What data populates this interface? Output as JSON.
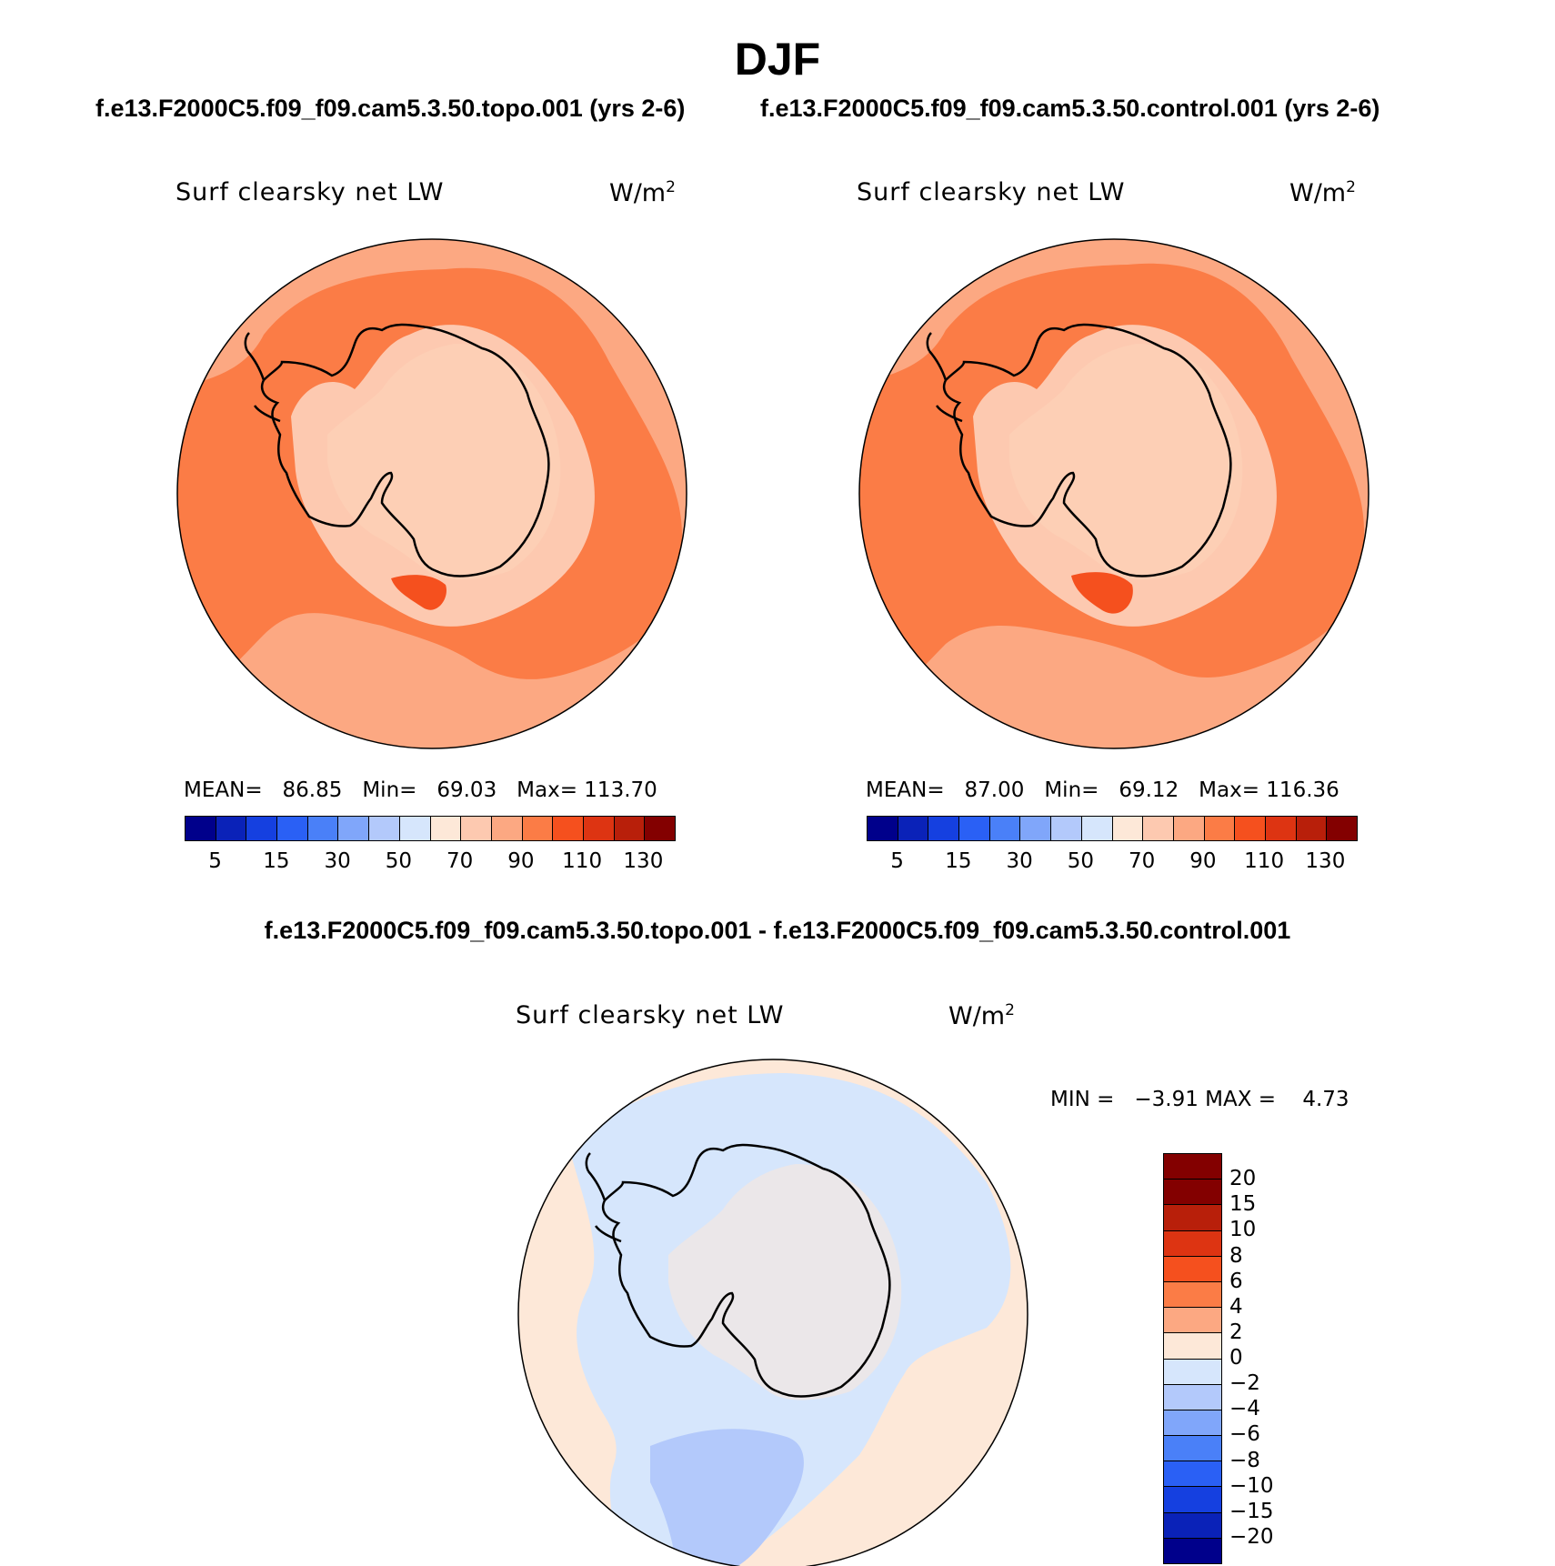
{
  "season": "DJF",
  "runs": {
    "topo_title": "f.e13.F2000C5.f09_f09.cam5.3.50.topo.001 (yrs 2-6)",
    "control_title": "f.e13.F2000C5.f09_f09.cam5.3.50.control.001 (yrs 2-6)",
    "diff_title": "f.e13.F2000C5.f09_f09.cam5.3.50.topo.001 - f.e13.F2000C5.f09_f09.cam5.3.50.control.001"
  },
  "variable": {
    "name": "Surf clearsky net LW",
    "units": "W/m",
    "units_exp": "2"
  },
  "panels": {
    "topo": {
      "mean_label": "MEAN=",
      "mean": "86.85",
      "min_label": "Min=",
      "min": "69.03",
      "max_label": "Max=",
      "max": "113.70"
    },
    "control": {
      "mean_label": "MEAN=",
      "mean": "87.00",
      "min_label": "Min=",
      "min": "69.12",
      "max_label": "Max=",
      "max": "116.36"
    },
    "diff": {
      "min_label": "MIN =",
      "min": "−3.91",
      "max_label": "MAX =",
      "max": "4.73"
    }
  },
  "abs_colorbar": {
    "colors": [
      "#00008b",
      "#0a22b8",
      "#1540e0",
      "#2a60f5",
      "#4a80f8",
      "#80a6fa",
      "#b3c9fb",
      "#d6e6fc",
      "#fde8d8",
      "#fdc9b0",
      "#fca882",
      "#fb7c46",
      "#f5501e",
      "#dd3412",
      "#b81f0a",
      "#830000"
    ],
    "ticks": [
      "5",
      "15",
      "30",
      "50",
      "70",
      "90",
      "110",
      "130"
    ]
  },
  "diff_colorbar": {
    "colors_top_to_bottom": [
      "#830000",
      "#b81f0a",
      "#dd3412",
      "#f5501e",
      "#fb7c46",
      "#fca882",
      "#fde8d8",
      "#d6e6fc",
      "#b3c9fb",
      "#80a6fa",
      "#4a80f8",
      "#2a60f5",
      "#1540e0",
      "#0a22b8",
      "#00008b"
    ],
    "ticks": [
      "20",
      "15",
      "10",
      "8",
      "6",
      "4",
      "2",
      "0",
      "−2",
      "−4",
      "−6",
      "−8",
      "−10",
      "−15",
      "−20"
    ]
  },
  "map_colors": {
    "abs_outer": "#fca882",
    "abs_band": "#fb7c46",
    "abs_coast": "#fdc9b0",
    "abs_interior": "#fdcfb5",
    "abs_hot": "#f5501e",
    "diff_bg": "#fde8d8",
    "diff_cool": "#d6e6fc",
    "diff_cooler": "#b3c9fb"
  }
}
